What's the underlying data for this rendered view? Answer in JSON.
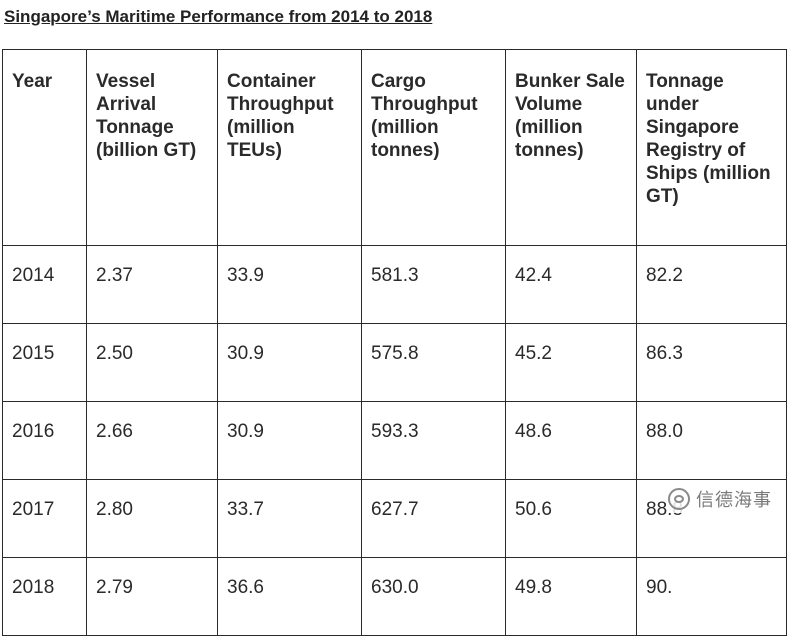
{
  "title": "Singapore’s Maritime Performance from 2014 to 2018",
  "table": {
    "columns": [
      "Year",
      "Vessel Arrival Tonnage (billion GT)",
      "Container Throughput (million TEUs)",
      "Cargo Throughput (million tonnes)",
      "Bunker Sale Volume (million tonnes)",
      "Tonnage under Singapore Registry of Ships (million GT)"
    ],
    "rows": [
      [
        "2014",
        "2.37",
        "33.9",
        "581.3",
        "42.4",
        "82.2"
      ],
      [
        "2015",
        "2.50",
        "30.9",
        "575.8",
        "45.2",
        "86.3"
      ],
      [
        "2016",
        "2.66",
        "30.9",
        "593.3",
        "48.6",
        "88.0"
      ],
      [
        "2017",
        "2.80",
        "33.7",
        "627.7",
        "50.6",
        "88.8"
      ],
      [
        "2018",
        "2.79",
        "36.6",
        "630.0",
        "49.8",
        "90."
      ]
    ]
  },
  "watermark": {
    "icon": "wechat-icon",
    "text": "信德海事"
  }
}
